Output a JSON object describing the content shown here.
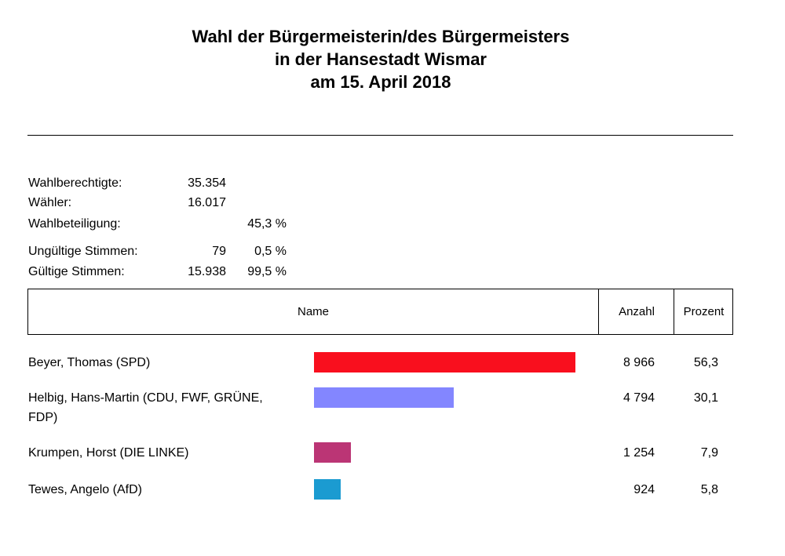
{
  "title": [
    "Wahl der Bürgermeisterin/des Bürgermeisters",
    "in der Hansestadt Wismar",
    "am 15. April 2018"
  ],
  "stats": [
    {
      "label": "Wahlberechtigte:",
      "count": "35.354",
      "percent": ""
    },
    {
      "label": "Wähler:",
      "count": "16.017",
      "percent": ""
    },
    {
      "label": "Wahlbeteiligung:",
      "count": "",
      "percent": "45,3 %"
    },
    {
      "label": "Ungültige Stimmen:",
      "count": "79",
      "percent": "0,5 %"
    },
    {
      "label": "Gültige Stimmen:",
      "count": "15.938",
      "percent": "99,5 %"
    }
  ],
  "table": {
    "headers": {
      "name": "Name",
      "count": "Anzahl",
      "percent": "Prozent"
    }
  },
  "chart_data": {
    "type": "bar",
    "categories": [
      "Beyer, Thomas (SPD)",
      "Helbig, Hans-Martin (CDU, FWF, GRÜNE, FDP)",
      "Krumpen, Horst (DIE LINKE)",
      "Tewes, Angelo (AfD)"
    ],
    "counts": [
      "8 966",
      "4 794",
      "1 254",
      "924"
    ],
    "percent_labels": [
      "56,3",
      "30,1",
      "7,9",
      "5,8"
    ],
    "values": [
      56.3,
      30.1,
      7.9,
      5.8
    ],
    "colors": [
      "#f90f1e",
      "#8386ff",
      "#bb3575",
      "#1b9bd1"
    ]
  }
}
